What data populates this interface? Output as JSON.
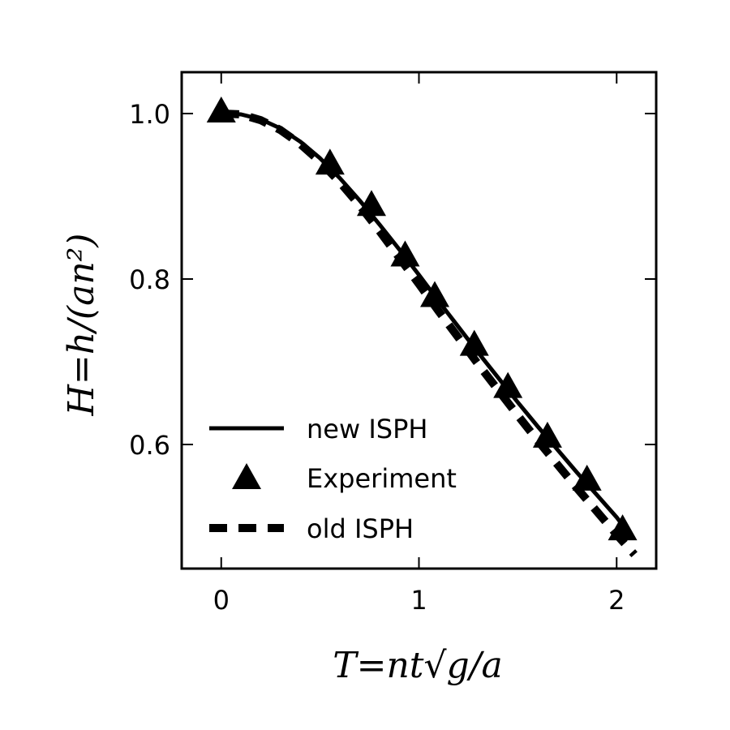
{
  "chart_data": {
    "type": "line",
    "xlabel": "T=nt√g/a",
    "ylabel": "H=h/(an²)",
    "xlim": [
      -0.2,
      2.2
    ],
    "ylim": [
      0.45,
      1.05
    ],
    "xticks": [
      "0",
      "1",
      "2"
    ],
    "yticks": [
      "0.6",
      "0.8",
      "1.0"
    ],
    "grid": false,
    "legend_position": "lower-left",
    "series": [
      {
        "name": "new ISPH",
        "style": "solid",
        "color": "#000000",
        "x": [
          0,
          0.1,
          0.2,
          0.3,
          0.4,
          0.5,
          0.6,
          0.7,
          0.8,
          0.9,
          1.0,
          1.1,
          1.2,
          1.3,
          1.4,
          1.5,
          1.6,
          1.7,
          1.8,
          1.9,
          2.0,
          2.07
        ],
        "y": [
          1.0,
          0.999,
          0.993,
          0.982,
          0.966,
          0.946,
          0.922,
          0.895,
          0.866,
          0.836,
          0.805,
          0.773,
          0.742,
          0.711,
          0.681,
          0.651,
          0.622,
          0.594,
          0.566,
          0.539,
          0.512,
          0.49
        ]
      },
      {
        "name": "Experiment",
        "style": "marker-triangle",
        "color": "#000000",
        "x": [
          0.0,
          0.55,
          0.76,
          0.93,
          1.08,
          1.28,
          1.45,
          1.65,
          1.85,
          2.03
        ],
        "y": [
          1.0,
          0.937,
          0.887,
          0.826,
          0.777,
          0.718,
          0.667,
          0.607,
          0.555,
          0.495
        ]
      },
      {
        "name": "old ISPH",
        "style": "dashed",
        "color": "#000000",
        "x": [
          0,
          0.1,
          0.2,
          0.3,
          0.4,
          0.5,
          0.6,
          0.7,
          0.8,
          0.9,
          1.0,
          1.1,
          1.2,
          1.3,
          1.4,
          1.5,
          1.6,
          1.7,
          1.8,
          1.9,
          2.0,
          2.09
        ],
        "y": [
          1.0,
          0.999,
          0.992,
          0.98,
          0.963,
          0.942,
          0.917,
          0.889,
          0.858,
          0.826,
          0.794,
          0.761,
          0.729,
          0.697,
          0.666,
          0.635,
          0.605,
          0.576,
          0.547,
          0.519,
          0.491,
          0.467
        ]
      }
    ]
  }
}
